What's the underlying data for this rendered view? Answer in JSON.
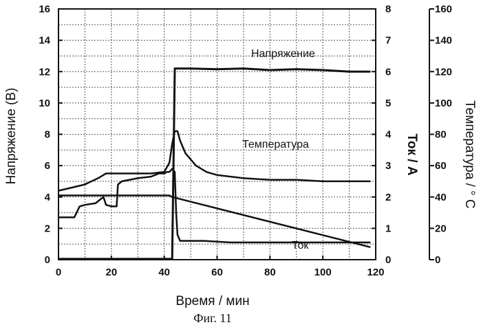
{
  "chart_data": {
    "type": "line",
    "caption": "Фиг. 11",
    "xlabel": "Время / мин",
    "xlim": [
      0,
      120
    ],
    "xticks": [
      "0",
      "20",
      "40",
      "60",
      "80",
      "100",
      "120"
    ],
    "grid": true,
    "axes": {
      "left": {
        "label": "Напряжение (В)",
        "lim": [
          0,
          16
        ],
        "ticks": [
          "0",
          "2",
          "4",
          "6",
          "8",
          "10",
          "12",
          "14",
          "16"
        ]
      },
      "right1": {
        "label": "Ток / А",
        "lim": [
          0,
          8
        ],
        "ticks": [
          "0",
          "1",
          "2",
          "3",
          "4",
          "5",
          "6",
          "7",
          "8"
        ]
      },
      "right2": {
        "label": "Температура  / ° С",
        "lim": [
          0,
          160
        ],
        "ticks": [
          "0",
          "20",
          "40",
          "60",
          "80",
          "100",
          "120",
          "140",
          "160"
        ]
      }
    },
    "series": [
      {
        "name": "Напряжение",
        "axis": "left",
        "x": [
          0,
          40,
          42,
          43,
          43.5,
          44,
          50,
          60,
          70,
          80,
          90,
          100,
          110,
          118
        ],
        "y": [
          0.05,
          0.05,
          0.05,
          0.05,
          6.0,
          12.2,
          12.2,
          12.15,
          12.2,
          12.1,
          12.15,
          12.1,
          12.0,
          12.0
        ]
      },
      {
        "name": "Температура",
        "axis": "right2",
        "x": [
          0,
          5,
          10,
          15,
          18,
          25,
          35,
          40,
          42,
          43,
          44,
          45,
          46,
          48,
          52,
          56,
          60,
          70,
          80,
          90,
          100,
          110,
          118
        ],
        "y": [
          44,
          46,
          48,
          52,
          55,
          55,
          55,
          56,
          62,
          74,
          82,
          82,
          76,
          68,
          60,
          56,
          54,
          52,
          51,
          51,
          50,
          50,
          50
        ]
      },
      {
        "name": "Ток",
        "axis": "right1",
        "x": [
          0,
          5,
          6,
          8,
          10,
          14,
          17,
          18,
          20,
          22,
          22.5,
          24,
          30,
          35,
          38,
          40,
          41,
          42,
          43,
          44,
          44.5,
          45,
          46,
          48,
          55,
          65,
          80,
          100,
          118
        ],
        "y": [
          1.35,
          1.35,
          1.35,
          1.7,
          1.75,
          1.8,
          2.0,
          1.75,
          1.7,
          1.7,
          2.4,
          2.5,
          2.6,
          2.65,
          2.75,
          2.75,
          2.8,
          2.8,
          2.9,
          2.8,
          1.5,
          0.8,
          0.6,
          0.6,
          0.6,
          0.55,
          0.55,
          0.55,
          0.55
        ]
      },
      {
        "name": "",
        "axis": "left",
        "x": [
          0,
          42,
          43,
          118
        ],
        "y": [
          4.1,
          4.1,
          4.0,
          0.8
        ]
      }
    ]
  }
}
